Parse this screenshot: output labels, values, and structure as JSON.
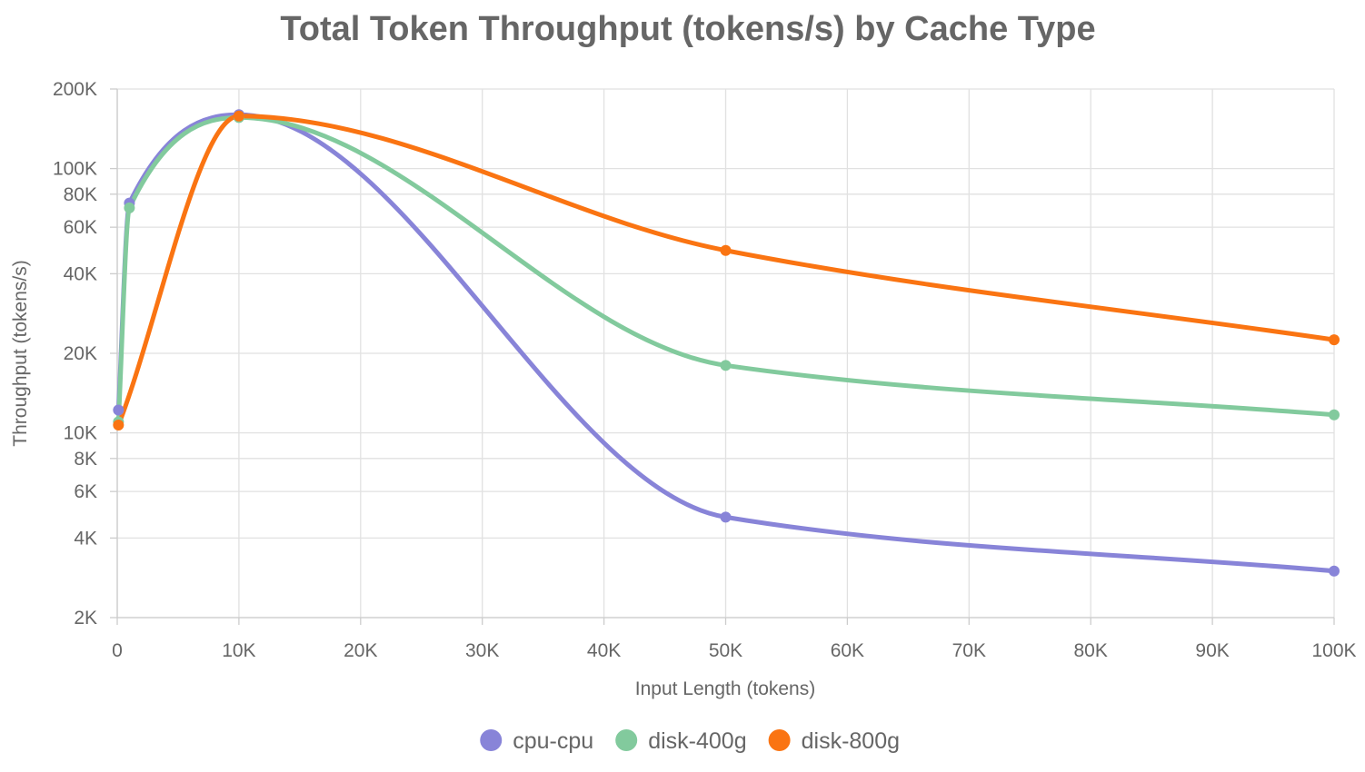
{
  "chart_data": {
    "type": "line",
    "title": "Total Token Throughput (tokens/s) by Cache Type",
    "xlabel": "Input Length (tokens)",
    "ylabel": "Throughput (tokens/s)",
    "xlim": [
      0,
      100000
    ],
    "ylim": [
      2000,
      200000
    ],
    "yscale": "log",
    "grid": true,
    "legend_position": "bottom",
    "x_ticks": [
      {
        "value": 0,
        "label": "0"
      },
      {
        "value": 10000,
        "label": "10K"
      },
      {
        "value": 20000,
        "label": "20K"
      },
      {
        "value": 30000,
        "label": "30K"
      },
      {
        "value": 40000,
        "label": "40K"
      },
      {
        "value": 50000,
        "label": "50K"
      },
      {
        "value": 60000,
        "label": "60K"
      },
      {
        "value": 70000,
        "label": "70K"
      },
      {
        "value": 80000,
        "label": "80K"
      },
      {
        "value": 90000,
        "label": "90K"
      },
      {
        "value": 100000,
        "label": "100K"
      }
    ],
    "y_ticks": [
      {
        "value": 2000,
        "label": "2K"
      },
      {
        "value": 4000,
        "label": "4K"
      },
      {
        "value": 6000,
        "label": "6K"
      },
      {
        "value": 8000,
        "label": "8K"
      },
      {
        "value": 10000,
        "label": "10K"
      },
      {
        "value": 20000,
        "label": "20K"
      },
      {
        "value": 40000,
        "label": "40K"
      },
      {
        "value": 60000,
        "label": "60K"
      },
      {
        "value": 80000,
        "label": "80K"
      },
      {
        "value": 100000,
        "label": "100K"
      },
      {
        "value": 200000,
        "label": "200K"
      }
    ],
    "series": [
      {
        "name": "cpu-cpu",
        "color": "#8884d8",
        "points": [
          [
            100,
            12200
          ],
          [
            1000,
            74000
          ],
          [
            10000,
            160000
          ],
          [
            50000,
            4800
          ],
          [
            100000,
            3000
          ]
        ]
      },
      {
        "name": "disk-400g",
        "color": "#82ca9d",
        "points": [
          [
            100,
            11000
          ],
          [
            1000,
            71000
          ],
          [
            10000,
            156000
          ],
          [
            50000,
            18000
          ],
          [
            100000,
            11700
          ]
        ]
      },
      {
        "name": "disk-800g",
        "color": "#fa7412",
        "points": [
          [
            100,
            10700
          ],
          [
            10000,
            158000
          ],
          [
            50000,
            49000
          ],
          [
            100000,
            22500
          ]
        ]
      }
    ]
  }
}
